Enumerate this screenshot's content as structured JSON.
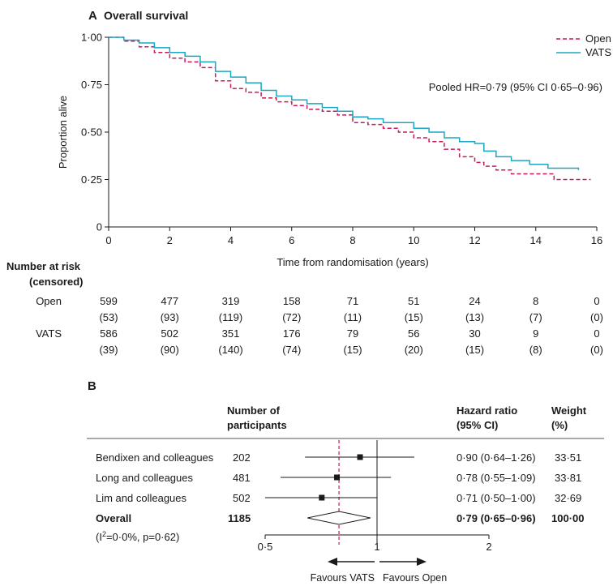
{
  "chart_data": [
    {
      "panel": "A",
      "type": "line",
      "title": "Overall survival",
      "xlabel": "Time from randomisation (years)",
      "ylabel": "Proportion alive",
      "xlim": [
        0,
        16
      ],
      "ylim": [
        0,
        1
      ],
      "x_ticks": [
        0,
        2,
        4,
        6,
        8,
        10,
        12,
        14,
        16
      ],
      "y_ticks": [
        "0",
        "0·25",
        "0·50",
        "0·75",
        "1·00"
      ],
      "y_tick_values": [
        0,
        0.25,
        0.5,
        0.75,
        1.0
      ],
      "annotation": "Pooled HR=0·79 (95% CI 0·65–0·96)",
      "legend": {
        "placement": "top-right",
        "entries": [
          "Open",
          "VATS"
        ]
      },
      "series": [
        {
          "name": "Open",
          "color": "#c8195a",
          "style": "dashed",
          "x": [
            0,
            0.5,
            1.0,
            1.5,
            2.0,
            2.5,
            3.0,
            3.5,
            4.0,
            4.5,
            5.0,
            5.5,
            6.0,
            6.5,
            7.0,
            7.5,
            8.0,
            8.5,
            9.0,
            9.5,
            10.0,
            10.5,
            11.0,
            11.5,
            12.0,
            12.3,
            12.7,
            13.2,
            14.0,
            14.6,
            15.8
          ],
          "y": [
            1.0,
            0.98,
            0.95,
            0.92,
            0.89,
            0.87,
            0.84,
            0.77,
            0.73,
            0.71,
            0.68,
            0.66,
            0.64,
            0.62,
            0.61,
            0.59,
            0.55,
            0.54,
            0.52,
            0.5,
            0.47,
            0.45,
            0.41,
            0.37,
            0.34,
            0.32,
            0.3,
            0.28,
            0.28,
            0.25,
            0.25
          ]
        },
        {
          "name": "VATS",
          "color": "#1aa7c4",
          "style": "solid",
          "x": [
            0,
            0.5,
            1.0,
            1.5,
            2.0,
            2.5,
            3.0,
            3.5,
            4.0,
            4.5,
            5.0,
            5.5,
            6.0,
            6.5,
            7.0,
            7.5,
            8.0,
            8.5,
            9.0,
            9.5,
            10.0,
            10.5,
            11.0,
            11.5,
            12.0,
            12.3,
            12.7,
            13.2,
            13.8,
            14.4,
            15.4
          ],
          "y": [
            1.0,
            0.985,
            0.97,
            0.945,
            0.92,
            0.9,
            0.87,
            0.82,
            0.79,
            0.76,
            0.72,
            0.69,
            0.67,
            0.65,
            0.63,
            0.61,
            0.58,
            0.57,
            0.55,
            0.55,
            0.52,
            0.5,
            0.47,
            0.45,
            0.44,
            0.4,
            0.37,
            0.35,
            0.33,
            0.31,
            0.3
          ]
        }
      ],
      "risk_table": {
        "header": [
          "Number at risk",
          "(censored)"
        ],
        "rows": [
          {
            "label": "Open",
            "values": [
              "599",
              "477",
              "319",
              "158",
              "71",
              "51",
              "24",
              "8",
              "0"
            ],
            "censored": [
              "(53)",
              "(93)",
              "(119)",
              "(72)",
              "(11)",
              "(15)",
              "(13)",
              "(7)",
              "(0)"
            ]
          },
          {
            "label": "VATS",
            "values": [
              "586",
              "502",
              "351",
              "176",
              "79",
              "56",
              "30",
              "9",
              "0"
            ],
            "censored": [
              "(39)",
              "(90)",
              "(140)",
              "(74)",
              "(15)",
              "(20)",
              "(15)",
              "(8)",
              "(0)"
            ]
          }
        ]
      }
    },
    {
      "panel": "B",
      "type": "forest",
      "col_headers": {
        "participants": [
          "Number of",
          "participants"
        ],
        "hr": [
          "Hazard ratio",
          "(95% CI)"
        ],
        "weight": [
          "Weight",
          "(%)"
        ]
      },
      "studies": [
        {
          "name": "Bendixen and colleagues",
          "n": "202",
          "hr": 0.9,
          "lo": 0.64,
          "hi": 1.26,
          "hr_text": "0·90 (0·64–1·26)",
          "weight": "33·51"
        },
        {
          "name": "Long and colleagues",
          "n": "481",
          "hr": 0.78,
          "lo": 0.55,
          "hi": 1.09,
          "hr_text": "0·78 (0·55–1·09)",
          "weight": "33·81"
        },
        {
          "name": "Lim and colleagues",
          "n": "502",
          "hr": 0.71,
          "lo": 0.5,
          "hi": 1.0,
          "hr_text": "0·71 (0·50–1·00)",
          "weight": "32·69"
        }
      ],
      "overall": {
        "name": "Overall",
        "n": "1185",
        "hr": 0.79,
        "lo": 0.65,
        "hi": 0.96,
        "hr_text": "0·79 (0·65–0·96)",
        "weight": "100·00"
      },
      "heterogeneity_pre": "(I",
      "heterogeneity_sup": "2",
      "heterogeneity_post": "=0·0%, p=0·62)",
      "x_scale": "log",
      "x_ticks": [
        0.5,
        1,
        2
      ],
      "x_tick_labels": [
        "0·5",
        "1",
        "2"
      ],
      "favours_left": "Favours VATS",
      "favours_right": "Favours Open"
    }
  ]
}
